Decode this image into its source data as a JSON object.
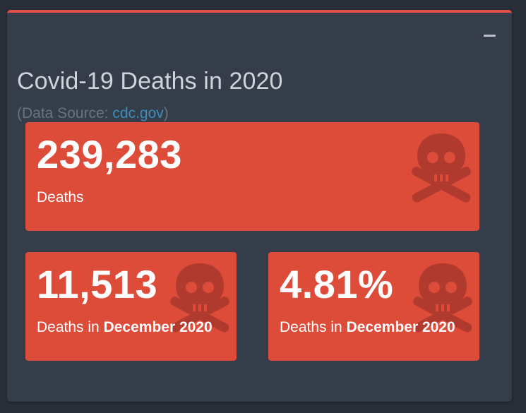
{
  "panel": {
    "title": "Covid-19 Deaths in 2020",
    "source_prefix": "(Data Source: ",
    "source_link": "cdc.gov",
    "source_suffix": ")",
    "collapse_icon": "minus-icon"
  },
  "stats": {
    "total": {
      "value": "239,283",
      "label": "Deaths",
      "icon": "skull-crossbones-icon"
    },
    "december": {
      "value": "11,513",
      "label_prefix": "Deaths in ",
      "label_bold": "December 2020",
      "icon": "skull-crossbones-icon"
    },
    "percent": {
      "value": "4.81%",
      "label_prefix": "Deaths in ",
      "label_bold": "December 2020",
      "icon": "skull-crossbones-icon"
    }
  },
  "colors": {
    "page_bg": "#272e38",
    "panel_bg": "#343d49",
    "panel_accent": "#e25049",
    "box_bg": "#dd4b39",
    "skull": "#b03a2e",
    "link": "#3c8dbc"
  }
}
